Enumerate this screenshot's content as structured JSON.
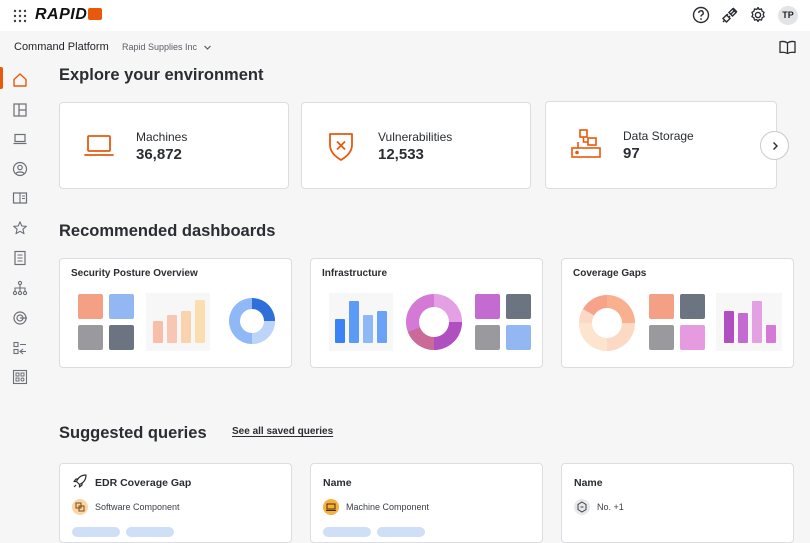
{
  "topbar": {
    "logo_text": "RAPID",
    "avatar_initials": "TP",
    "icons": [
      "apps-grid-icon",
      "help-icon",
      "integrations-icon",
      "settings-icon"
    ]
  },
  "subbar": {
    "platform": "Command Platform",
    "org": "Rapid Supplies Inc"
  },
  "sidebar": {
    "items": [
      "home-icon",
      "dashboards-icon",
      "machines-icon",
      "identities-icon",
      "library-icon",
      "favorites-icon",
      "reports-icon",
      "hierarchy-icon",
      "surface-icon",
      "rules-icon",
      "components-icon"
    ],
    "active": "home-icon"
  },
  "explore": {
    "heading": "Explore your environment",
    "cards": [
      {
        "label": "Machines",
        "value": "36,872",
        "icon": "laptop-icon"
      },
      {
        "label": "Vulnerabilities",
        "value": "12,533",
        "icon": "shield-x-icon"
      },
      {
        "label": "Data Storage",
        "value": "97",
        "icon": "storage-icon"
      }
    ]
  },
  "dashboards": {
    "heading": "Recommended dashboards",
    "cards": [
      {
        "title": "Security Posture Overview"
      },
      {
        "title": "Infrastructure"
      },
      {
        "title": "Coverage Gaps"
      }
    ]
  },
  "queries": {
    "heading": "Suggested queries",
    "see_all": "See all saved queries",
    "cards": [
      {
        "title": "EDR Coverage Gap",
        "sub": "Software Component",
        "icon": "rocket-icon"
      },
      {
        "title": "Name",
        "sub": "Machine Component",
        "icon": ""
      },
      {
        "title": "Name",
        "sub": "No. +1",
        "icon": ""
      }
    ]
  },
  "colors": {
    "accent": "#e8590c",
    "blue": "#3b82f6",
    "purple": "#b04fc0"
  }
}
